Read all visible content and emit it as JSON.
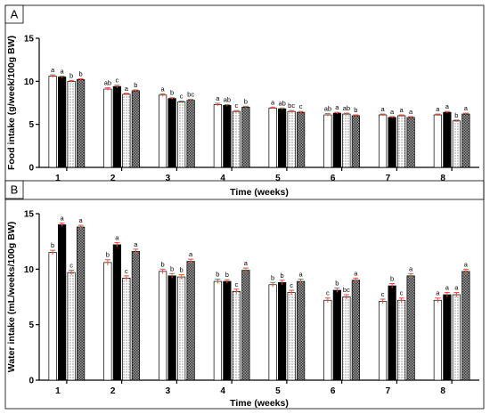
{
  "chart_data": [
    {
      "type": "bar",
      "panel_label": "A",
      "xlabel": "Time (weeks)",
      "ylabel": "Food intake (g/week/100g BW)",
      "categories": [
        "1",
        "2",
        "3",
        "4",
        "5",
        "6",
        "7",
        "8"
      ],
      "ylim": [
        0,
        15
      ],
      "yticks": [
        0,
        5,
        10,
        15
      ],
      "series": [
        {
          "fill": "white",
          "values": [
            10.6,
            9.1,
            8.4,
            7.3,
            6.9,
            6.1,
            6.1,
            6.1
          ],
          "errors": [
            0.15,
            0.15,
            0.15,
            0.15,
            0.1,
            0.15,
            0.1,
            0.1
          ],
          "letters": [
            "a",
            "ab",
            "a",
            "a",
            "a",
            "ab",
            "a",
            "a"
          ]
        },
        {
          "fill": "black",
          "values": [
            10.5,
            9.4,
            8.0,
            7.2,
            6.8,
            6.3,
            5.8,
            6.4
          ],
          "errors": [
            0.1,
            0.15,
            0.1,
            0.1,
            0.1,
            0.1,
            0.1,
            0.1
          ],
          "letters": [
            "a",
            "c",
            "b",
            "ab",
            "ab",
            "a",
            "a",
            "a"
          ]
        },
        {
          "fill": "dotted",
          "values": [
            10.0,
            8.5,
            7.6,
            6.5,
            6.5,
            6.2,
            6.0,
            5.4
          ],
          "errors": [
            0.1,
            0.1,
            0.1,
            0.1,
            0.1,
            0.1,
            0.1,
            0.1
          ],
          "letters": [
            "b",
            "a",
            "c",
            "c",
            "bc",
            "ab",
            "a",
            "b"
          ]
        },
        {
          "fill": "crosshatch",
          "values": [
            10.2,
            8.9,
            7.8,
            7.0,
            6.4,
            6.0,
            5.8,
            6.2
          ],
          "errors": [
            0.1,
            0.1,
            0.1,
            0.1,
            0.1,
            0.1,
            0.1,
            0.1
          ],
          "letters": [
            "b",
            "b",
            "bc",
            "b",
            "c",
            "b",
            "a",
            "a"
          ]
        }
      ],
      "error_bar_color": "#e8503a",
      "grid": false,
      "legend": "none"
    },
    {
      "type": "bar",
      "panel_label": "B",
      "xlabel": "Time (weeks)",
      "ylabel": "Water intake (mL/weeks/100g BW)",
      "categories": [
        "1",
        "2",
        "3",
        "4",
        "5",
        "6",
        "7",
        "8"
      ],
      "ylim": [
        0,
        15
      ],
      "yticks": [
        0,
        5,
        10,
        15
      ],
      "series": [
        {
          "fill": "white",
          "values": [
            11.5,
            10.6,
            9.8,
            8.9,
            8.6,
            7.2,
            7.1,
            7.2
          ],
          "errors": [
            0.2,
            0.25,
            0.2,
            0.2,
            0.2,
            0.2,
            0.2,
            0.2
          ],
          "letters": [
            "b",
            "b",
            "b",
            "b",
            "b",
            "c",
            "c",
            "a"
          ]
        },
        {
          "fill": "black",
          "values": [
            14.0,
            12.2,
            9.4,
            8.9,
            8.8,
            8.1,
            8.5,
            7.7
          ],
          "errors": [
            0.15,
            0.2,
            0.2,
            0.15,
            0.2,
            0.2,
            0.2,
            0.2
          ],
          "letters": [
            "a",
            "a",
            "b",
            "b",
            "b",
            "b",
            "b",
            "a"
          ]
        },
        {
          "fill": "dotted",
          "values": [
            9.7,
            9.2,
            9.3,
            8.0,
            7.9,
            7.5,
            7.2,
            7.7
          ],
          "errors": [
            0.2,
            0.2,
            0.2,
            0.2,
            0.2,
            0.2,
            0.2,
            0.2
          ],
          "letters": [
            "c",
            "c",
            "b",
            "c",
            "c",
            "bc",
            "c",
            "a"
          ]
        },
        {
          "fill": "crosshatch",
          "values": [
            13.8,
            11.6,
            10.7,
            9.9,
            8.9,
            9.0,
            9.4,
            9.8
          ],
          "errors": [
            0.15,
            0.2,
            0.2,
            0.2,
            0.2,
            0.2,
            0.2,
            0.2
          ],
          "letters": [
            "a",
            "a",
            "a",
            "a",
            "a",
            "a",
            "a",
            "a"
          ]
        }
      ],
      "error_bar_color": "#e8503a",
      "grid": false,
      "legend": "none"
    }
  ]
}
